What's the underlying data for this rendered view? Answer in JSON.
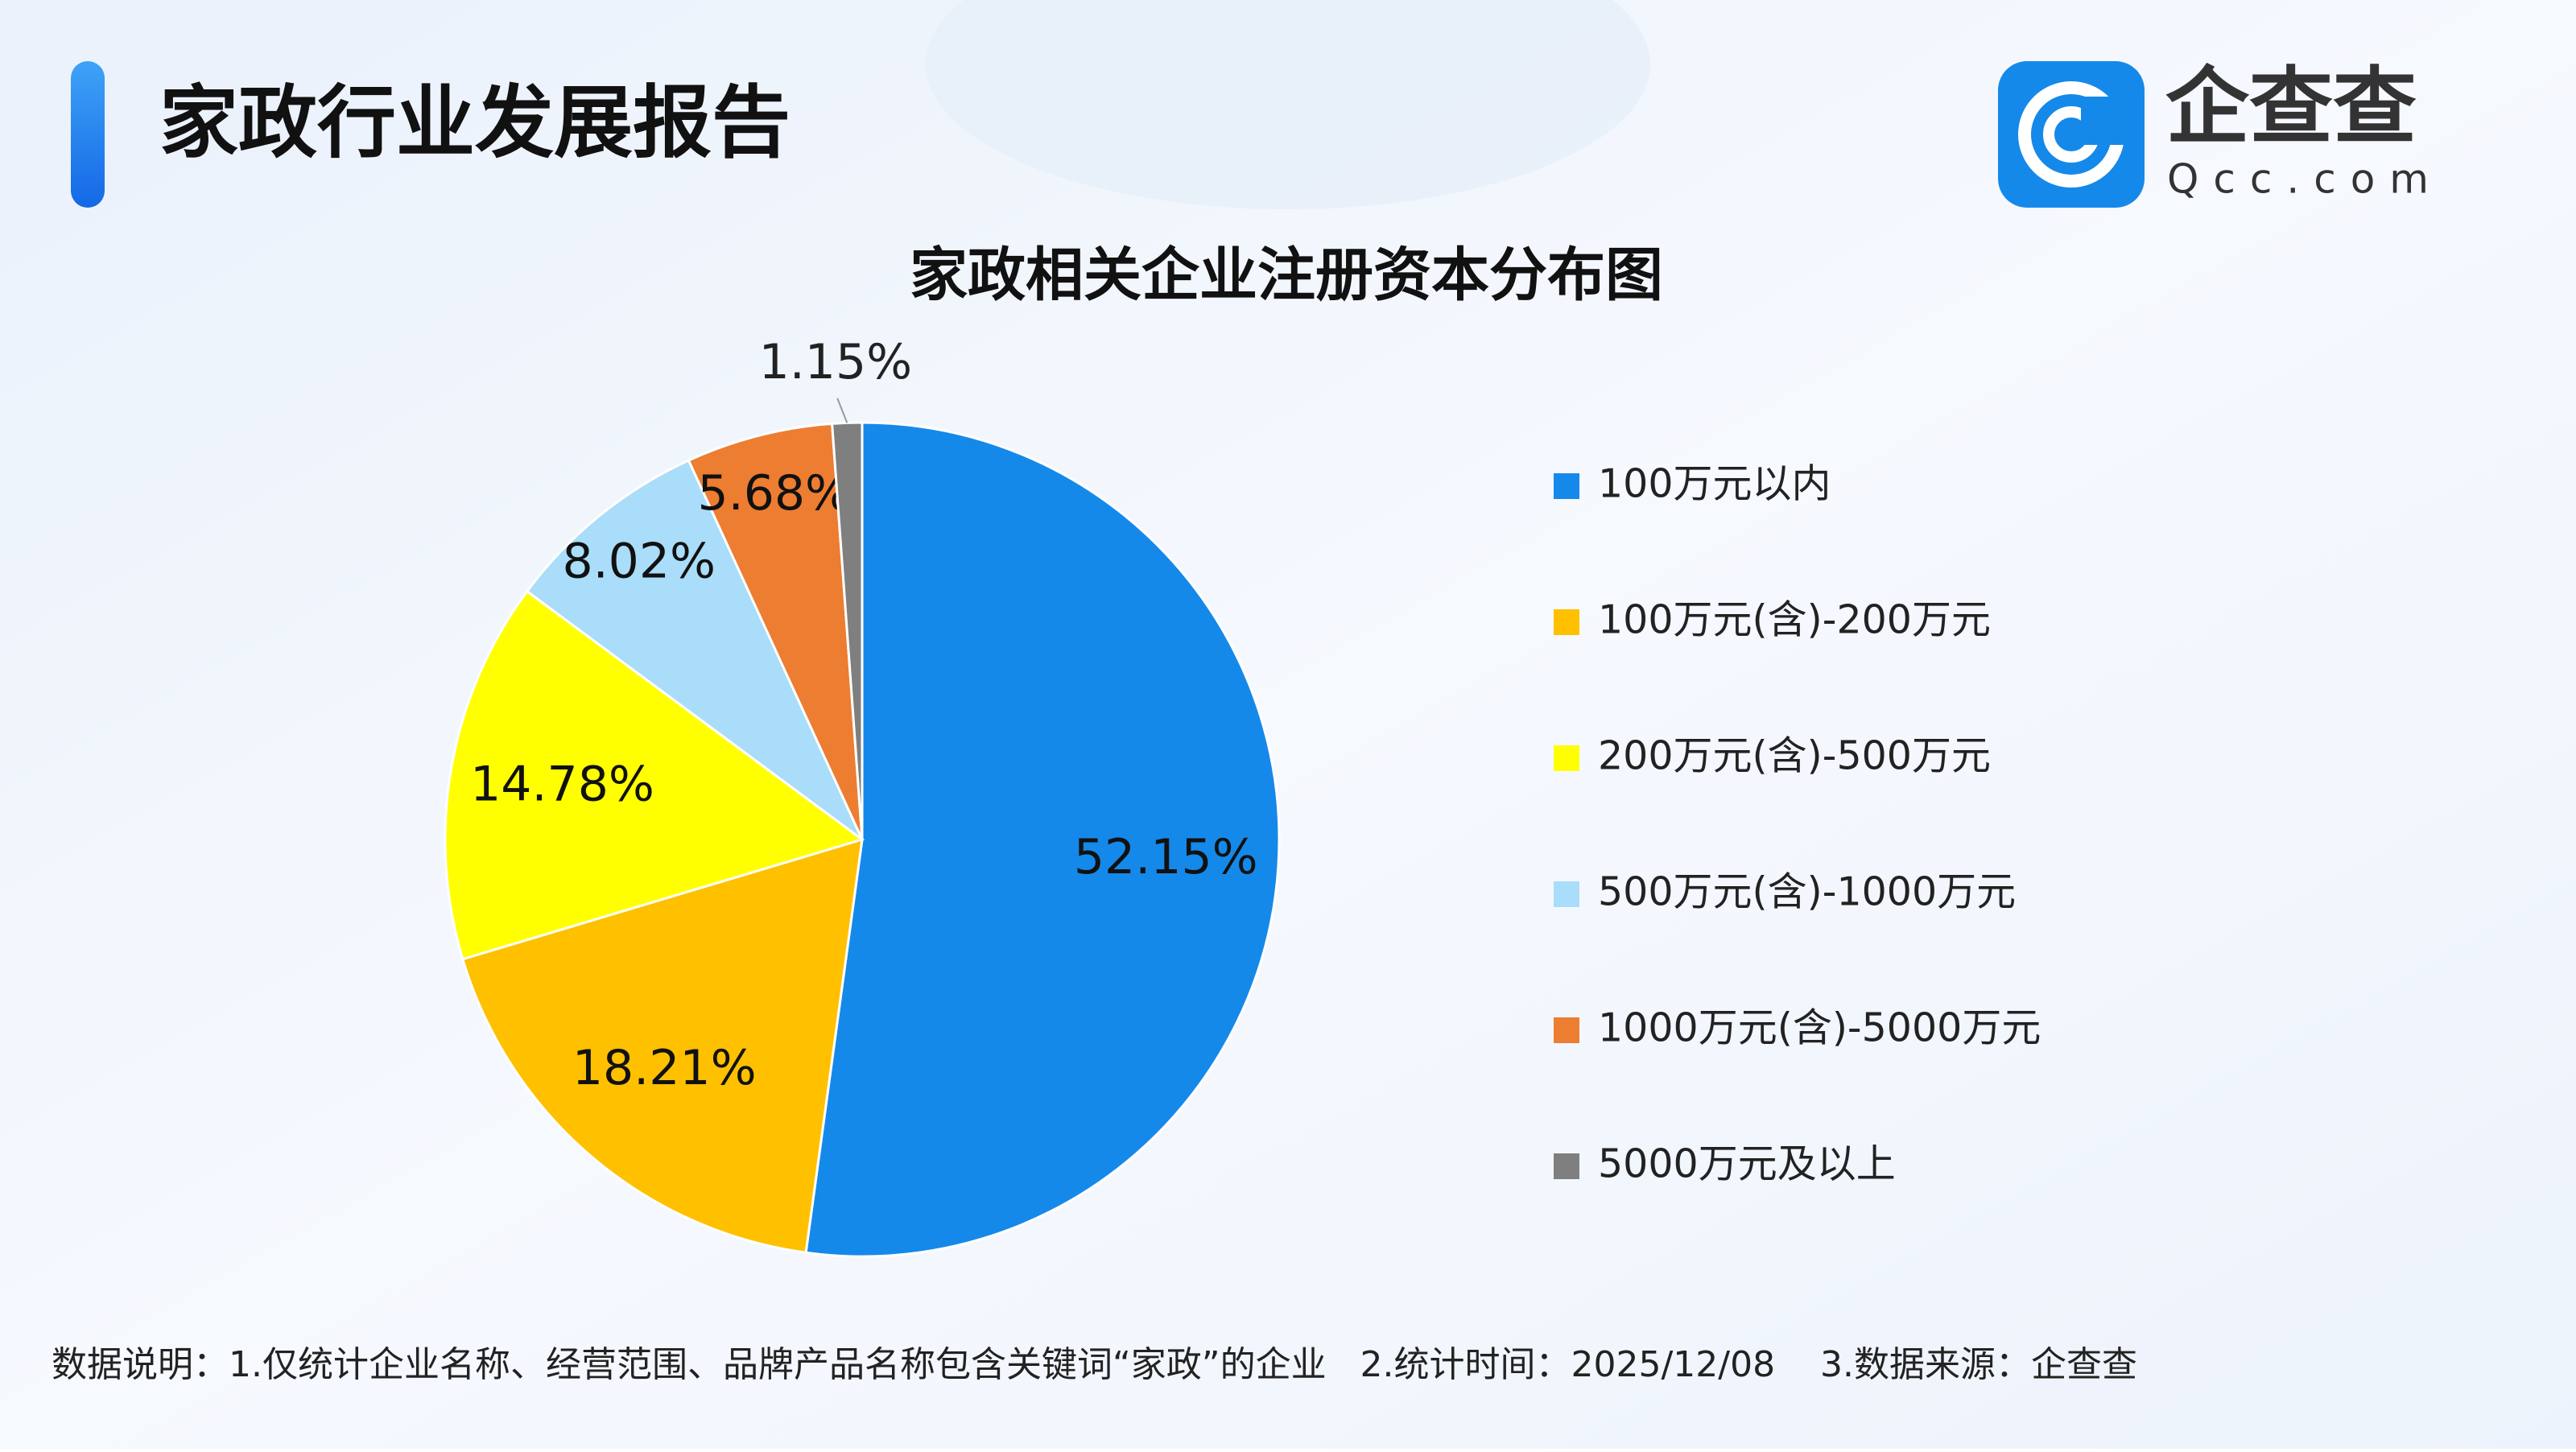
{
  "header": {
    "title": "家政行业发展报告",
    "logo_name": "企查查",
    "logo_domain": "Qcc.com"
  },
  "chart_data": {
    "type": "pie",
    "title": "家政相关企业注册资本分布图",
    "categories": [
      "100万元以内",
      "100万元(含)-200万元",
      "200万元(含)-500万元",
      "500万元(含)-1000万元",
      "1000万元(含)-5000万元",
      "5000万元及以上"
    ],
    "values": [
      52.15,
      18.21,
      14.78,
      8.02,
      5.68,
      1.15
    ],
    "value_labels": [
      "52.15%",
      "18.21%",
      "14.78%",
      "8.02%",
      "5.68%",
      "1.15%"
    ],
    "colors": [
      "#1589EA",
      "#FFC000",
      "#FFFF00",
      "#A9DDF9",
      "#ED7D31",
      "#7F7F7F"
    ],
    "legend": "right"
  },
  "footer": {
    "note": "数据说明：1.仅统计企业名称、经营范围、品牌产品名称包含关键词“家政”的企业   2.统计时间：2025/12/08    3.数据来源：企查查"
  }
}
